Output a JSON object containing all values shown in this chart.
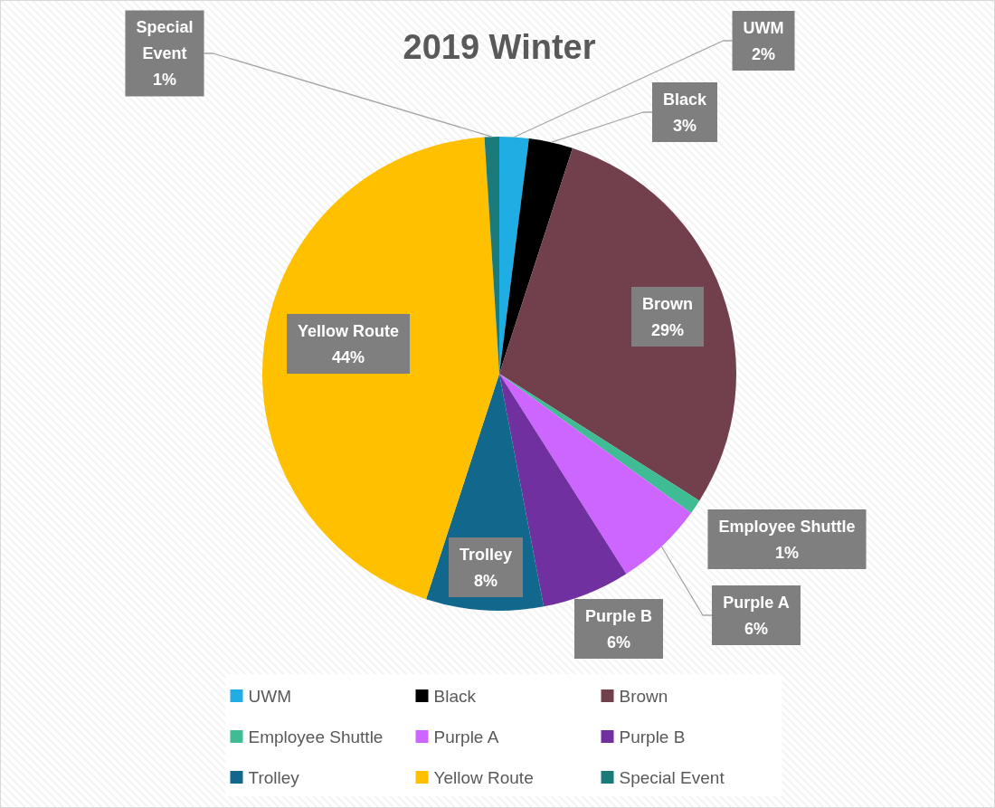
{
  "chart_data": {
    "type": "pie",
    "title": "2019 Winter",
    "categories": [
      "UWM",
      "Black",
      "Brown",
      "Employee Shuttle",
      "Purple A",
      "Purple B",
      "Trolley",
      "Yellow Route",
      "Special Event"
    ],
    "values": [
      2,
      3,
      29,
      1,
      6,
      6,
      8,
      44,
      1
    ],
    "value_labels": [
      "2%",
      "3%",
      "29%",
      "1%",
      "6%",
      "6%",
      "8%",
      "44%",
      "1%"
    ],
    "colors": [
      "#1fade4",
      "#000000",
      "#71404c",
      "#3fbc94",
      "#cc66ff",
      "#7030a0",
      "#12678c",
      "#ffc000",
      "#1b7a7a"
    ],
    "legend": "bottom"
  }
}
